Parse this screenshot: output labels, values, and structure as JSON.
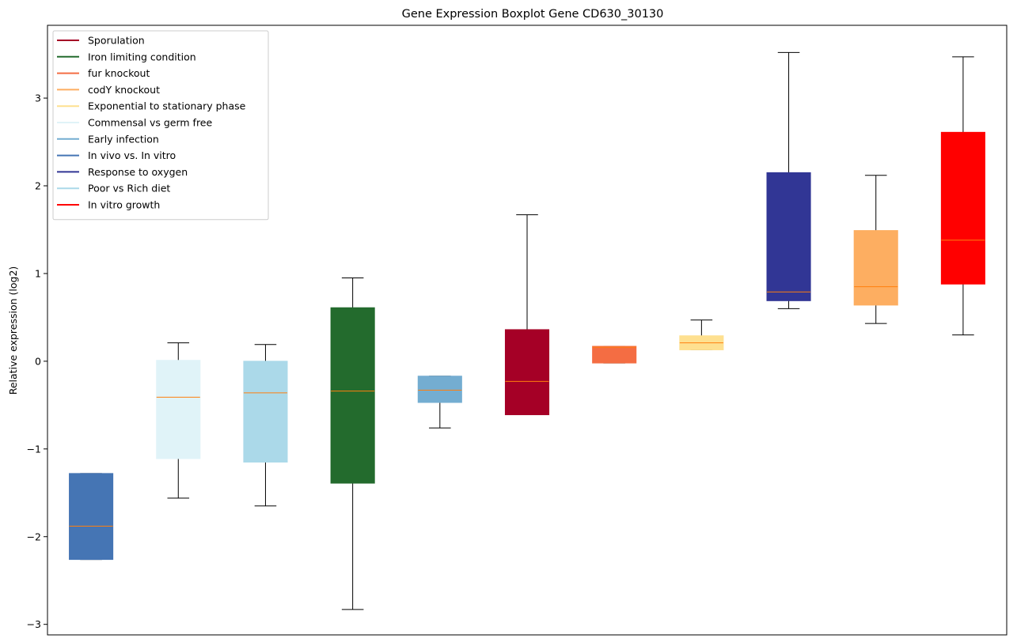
{
  "chart_data": {
    "type": "boxplot",
    "title": "Gene Expression Boxplot Gene CD630_30130",
    "xlabel": "",
    "ylabel": "Relative expression (log2)",
    "ylim": [
      -3.12,
      3.83
    ],
    "yticks": [
      -3,
      -2,
      -1,
      0,
      1,
      2,
      3
    ],
    "ytick_labels": [
      "−3",
      "−2",
      "−1",
      "0",
      "1",
      "2",
      "3"
    ],
    "legend_position": "top-left",
    "legend": [
      {
        "label": "Sporulation",
        "color": "#a50026"
      },
      {
        "label": "Iron limiting condition",
        "color": "#236b2d"
      },
      {
        "label": "fur knockout",
        "color": "#f46d43"
      },
      {
        "label": "codY knockout",
        "color": "#fdae61"
      },
      {
        "label": "Exponential to stationary phase",
        "color": "#fee090"
      },
      {
        "label": "Commensal vs germ free",
        "color": "#e0f3f8"
      },
      {
        "label": "Early infection",
        "color": "#74add1"
      },
      {
        "label": "In vivo vs. In vitro",
        "color": "#4575b4"
      },
      {
        "label": "Response to oxygen",
        "color": "#313695"
      },
      {
        "label": "Poor vs Rich diet",
        "color": "#abd9e9"
      },
      {
        "label": "In vitro growth",
        "color": "#ff0000"
      }
    ],
    "boxes": [
      {
        "group": "In vivo vs. In vitro",
        "color": "#4575b4",
        "whislo": -2.26,
        "q1": -2.26,
        "median": -1.88,
        "q3": -1.28,
        "whishi": -1.28
      },
      {
        "group": "Commensal vs germ free",
        "color": "#e0f3f8",
        "whislo": -1.56,
        "q1": -1.11,
        "median": -0.41,
        "q3": 0.01,
        "whishi": 0.21
      },
      {
        "group": "Poor vs Rich diet",
        "color": "#abd9e9",
        "whislo": -1.65,
        "q1": -1.15,
        "median": -0.36,
        "q3": 0.0,
        "whishi": 0.19
      },
      {
        "group": "Iron limiting condition",
        "color": "#236b2d",
        "whislo": -2.83,
        "q1": -1.39,
        "median": -0.34,
        "q3": 0.61,
        "whishi": 0.95
      },
      {
        "group": "Early infection",
        "color": "#74add1",
        "whislo": -0.76,
        "q1": -0.47,
        "median": -0.33,
        "q3": -0.17,
        "whishi": -0.17
      },
      {
        "group": "Sporulation",
        "color": "#a50026",
        "whislo": -0.61,
        "q1": -0.61,
        "median": -0.23,
        "q3": 0.36,
        "whishi": 1.67
      },
      {
        "group": "fur knockout",
        "color": "#f46d43",
        "whislo": -0.02,
        "q1": -0.02,
        "median": 0.16,
        "q3": 0.17,
        "whishi": 0.17
      },
      {
        "group": "Exponential to stationary phase",
        "color": "#fee090",
        "whislo": 0.13,
        "q1": 0.13,
        "median": 0.21,
        "q3": 0.29,
        "whishi": 0.47
      },
      {
        "group": "Response to oxygen",
        "color": "#313695",
        "whislo": 0.6,
        "q1": 0.69,
        "median": 0.79,
        "q3": 2.15,
        "whishi": 3.52
      },
      {
        "group": "codY knockout",
        "color": "#fdae61",
        "whislo": 0.43,
        "q1": 0.64,
        "median": 0.85,
        "q3": 1.49,
        "whishi": 2.12
      },
      {
        "group": "In vitro growth",
        "color": "#ff0000",
        "whislo": 0.3,
        "q1": 0.88,
        "median": 1.38,
        "q3": 2.61,
        "whishi": 3.47
      }
    ],
    "median_color": "#ff7f0e",
    "whisker_color": "#000000"
  }
}
